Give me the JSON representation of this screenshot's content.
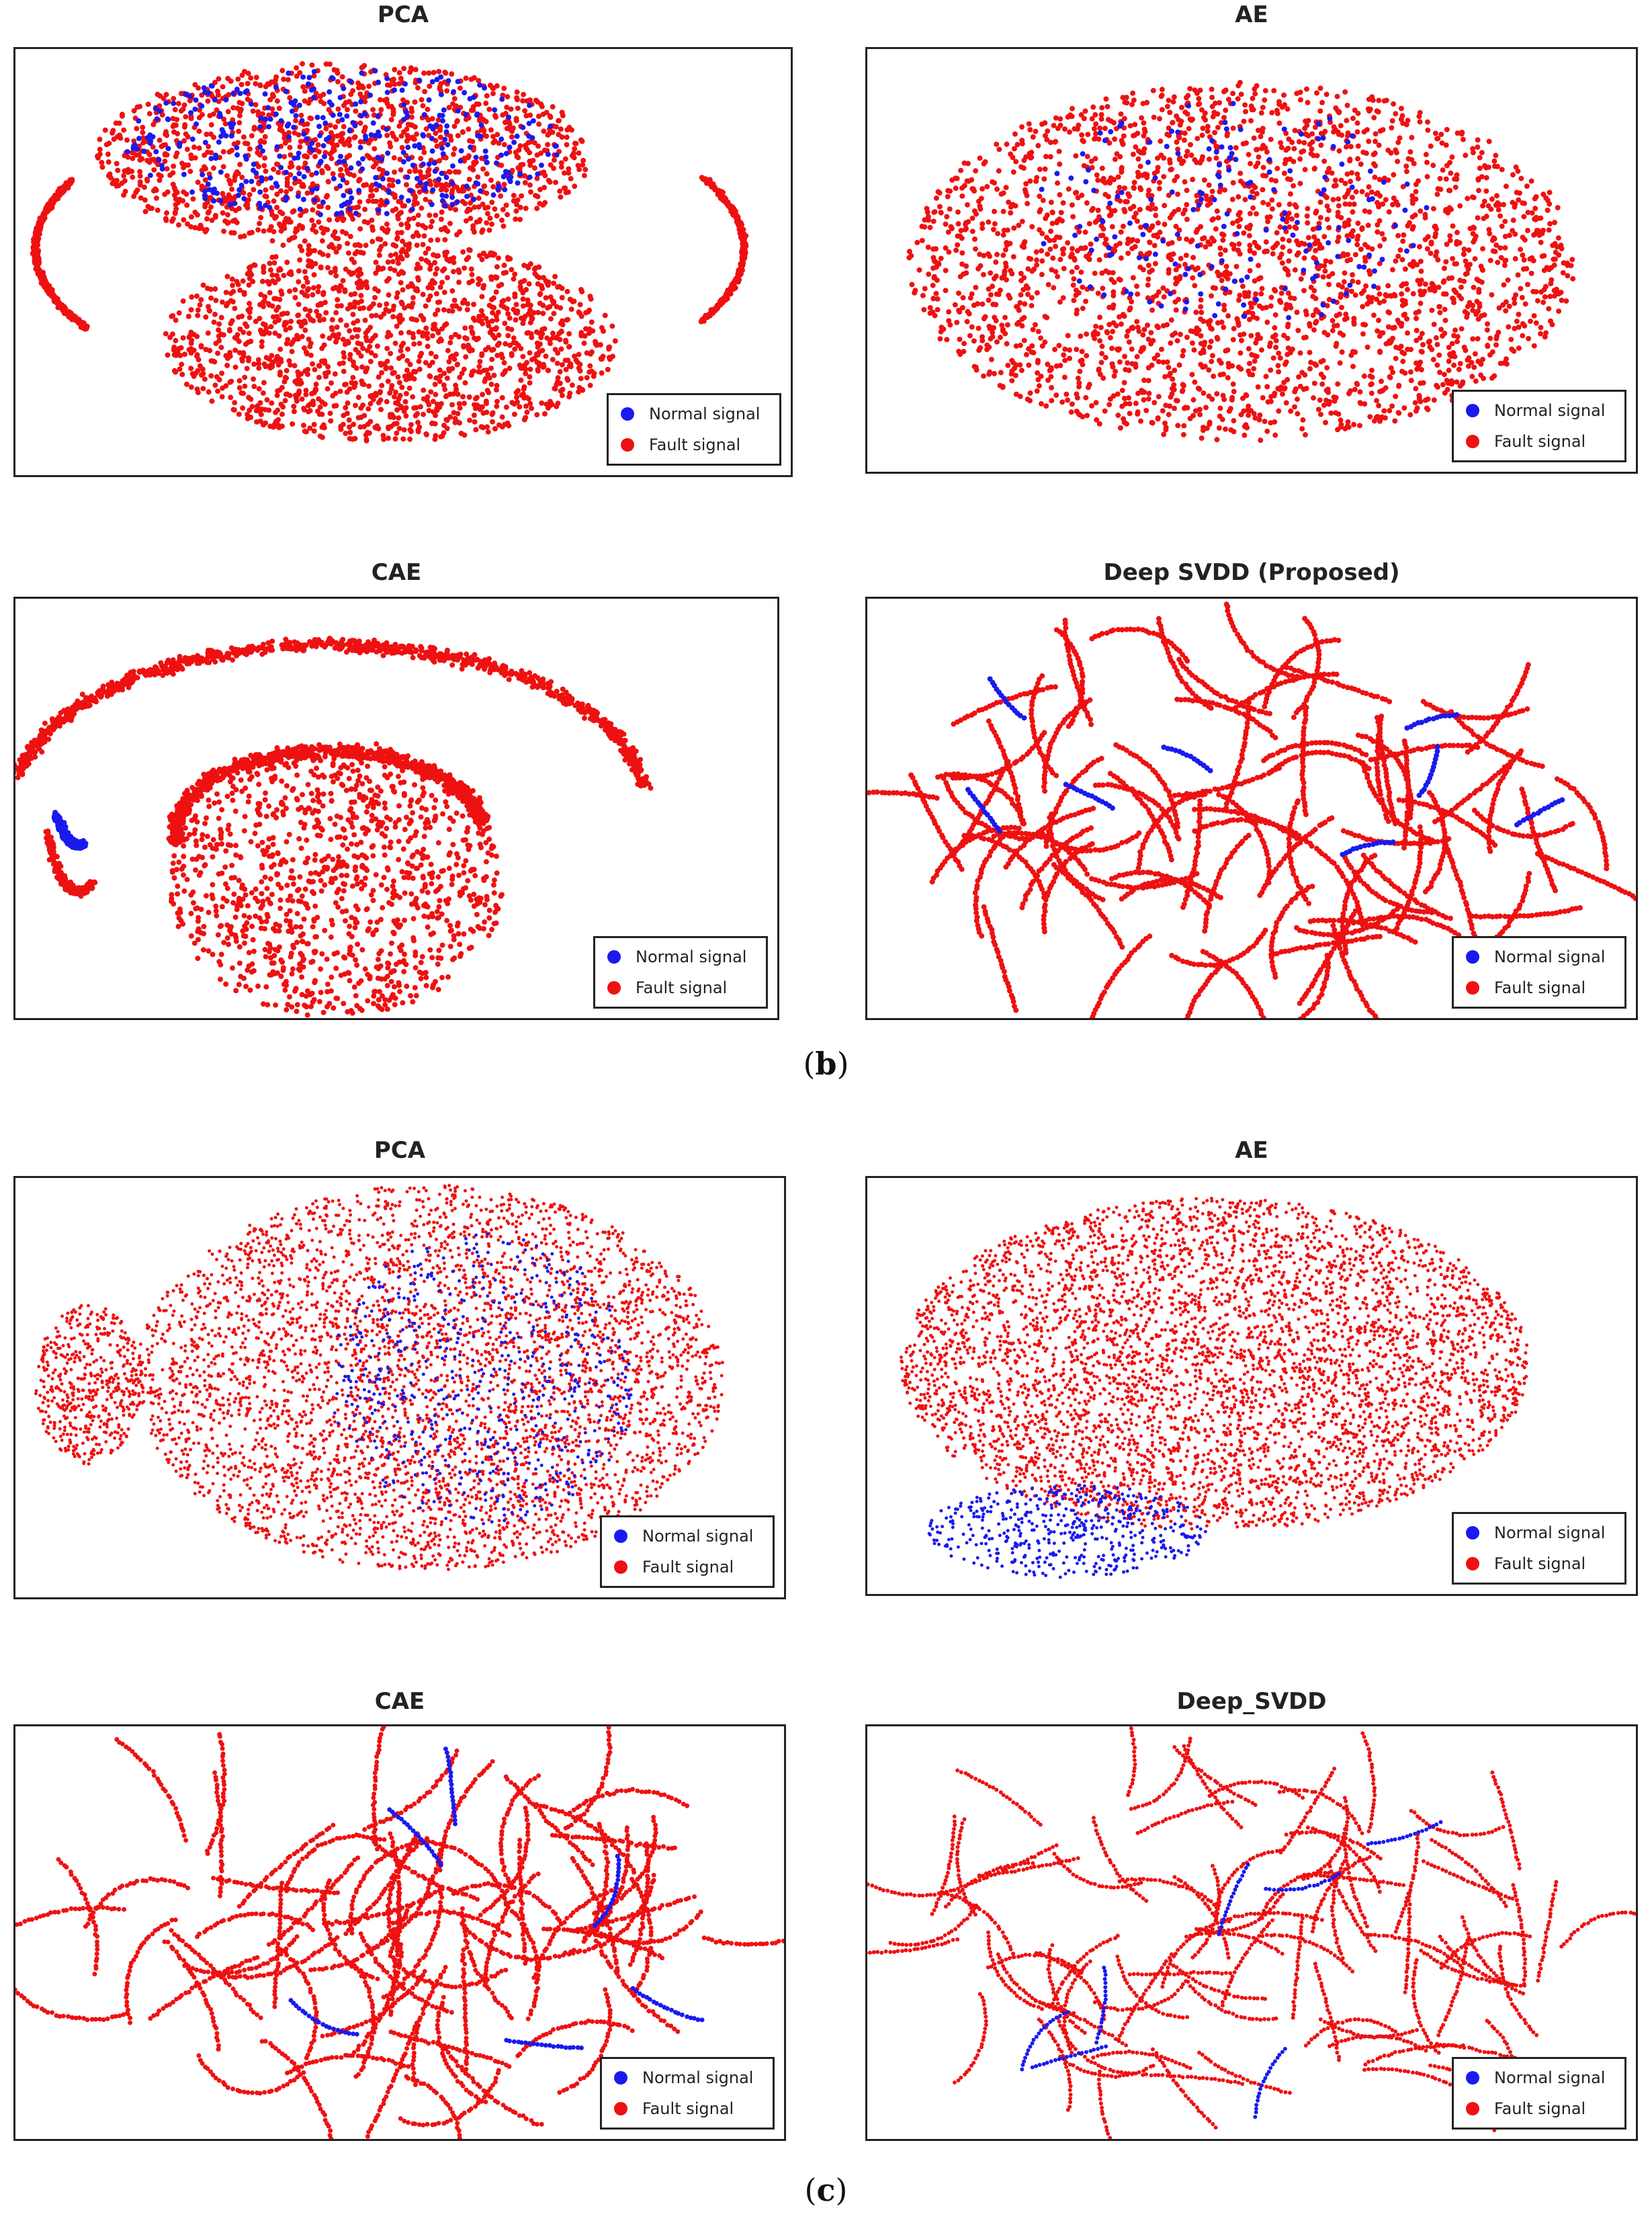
{
  "colors": {
    "normal": "#1a1aee",
    "fault": "#ee1111"
  },
  "chart_data": [
    {
      "type": "scatter",
      "group": "b",
      "title": "PCA",
      "legend": {
        "placement": "bottom-right",
        "entries": [
          "Normal signal",
          "Fault signal"
        ]
      },
      "series": [
        {
          "name": "Normal signal"
        },
        {
          "name": "Fault signal"
        }
      ]
    },
    {
      "type": "scatter",
      "group": "b",
      "title": "AE",
      "legend": {
        "placement": "bottom-right",
        "entries": [
          "Normal signal",
          "Fault signal"
        ]
      },
      "series": [
        {
          "name": "Normal signal"
        },
        {
          "name": "Fault signal"
        }
      ]
    },
    {
      "type": "scatter",
      "group": "b",
      "title": "CAE",
      "legend": {
        "placement": "bottom-right",
        "entries": [
          "Normal signal",
          "Fault signal"
        ]
      },
      "series": [
        {
          "name": "Normal signal"
        },
        {
          "name": "Fault signal"
        }
      ]
    },
    {
      "type": "scatter",
      "group": "b",
      "title": "Deep SVDD (Proposed)",
      "legend": {
        "placement": "bottom-right",
        "entries": [
          "Normal signal",
          "Fault signal"
        ]
      },
      "series": [
        {
          "name": "Normal signal"
        },
        {
          "name": "Fault signal"
        }
      ]
    },
    {
      "type": "scatter",
      "group": "c",
      "title": "PCA",
      "legend": {
        "placement": "bottom-right",
        "entries": [
          "Normal signal",
          "Fault signal"
        ]
      },
      "series": [
        {
          "name": "Normal signal"
        },
        {
          "name": "Fault signal"
        }
      ]
    },
    {
      "type": "scatter",
      "group": "c",
      "title": "AE",
      "legend": {
        "placement": "bottom-right",
        "entries": [
          "Normal signal",
          "Fault signal"
        ]
      },
      "series": [
        {
          "name": "Normal signal"
        },
        {
          "name": "Fault signal"
        }
      ]
    },
    {
      "type": "scatter",
      "group": "c",
      "title": "CAE",
      "legend": {
        "placement": "bottom-right",
        "entries": [
          "Normal signal",
          "Fault signal"
        ]
      },
      "series": [
        {
          "name": "Normal signal"
        },
        {
          "name": "Fault signal"
        }
      ]
    },
    {
      "type": "scatter",
      "group": "c",
      "title": "Deep_SVDD",
      "legend": {
        "placement": "bottom-right",
        "entries": [
          "Normal signal",
          "Fault signal"
        ]
      },
      "series": [
        {
          "name": "Normal signal"
        },
        {
          "name": "Fault signal"
        }
      ]
    }
  ],
  "captions": {
    "b": "b",
    "c": "c"
  }
}
